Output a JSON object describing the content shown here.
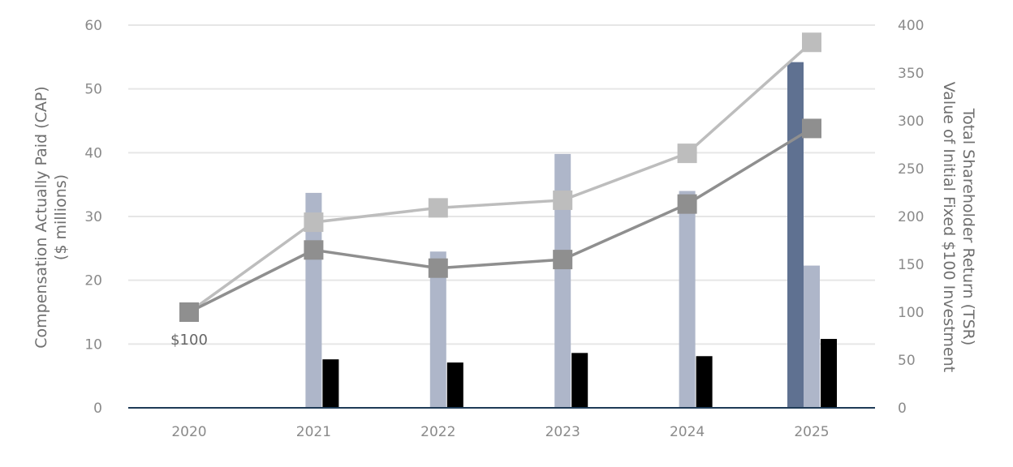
{
  "chart_data": {
    "type": "bar",
    "categories": [
      "2020",
      "2021",
      "2022",
      "2023",
      "2024",
      "2025"
    ],
    "y_left": {
      "label_line1": "Compensation Actually Paid (CAP)",
      "label_line2": "($ millions)",
      "range": [
        0,
        60
      ],
      "ticks": [
        "0",
        "10",
        "20",
        "30",
        "40",
        "50",
        "60"
      ]
    },
    "y_right": {
      "label_line1": "Total Shareholder Return (TSR)",
      "label_line2": "Value of Initial Fixed $100 Investment",
      "range": [
        0,
        400
      ],
      "ticks": [
        "0",
        "50",
        "100",
        "150",
        "200",
        "250",
        "300",
        "350",
        "400"
      ]
    },
    "bars": [
      {
        "color": "#5f7191",
        "values": [
          null,
          null,
          null,
          null,
          null,
          54.2
        ]
      },
      {
        "color": "#aeb6c9",
        "values": [
          null,
          33.7,
          24.5,
          39.8,
          34.0,
          22.3
        ]
      },
      {
        "color": "#000000",
        "values": [
          null,
          7.6,
          7.1,
          8.6,
          8.1,
          10.8
        ]
      }
    ],
    "lines": [
      {
        "color": "#bdbdbd",
        "axis": "right",
        "values": [
          100,
          194,
          209,
          217,
          266,
          382
        ]
      },
      {
        "color": "#8f8f8f",
        "axis": "right",
        "values": [
          100,
          165,
          146,
          155,
          213,
          292
        ]
      }
    ],
    "annotation": "$100",
    "grid": true,
    "baseline_color": "#1f3b57"
  }
}
